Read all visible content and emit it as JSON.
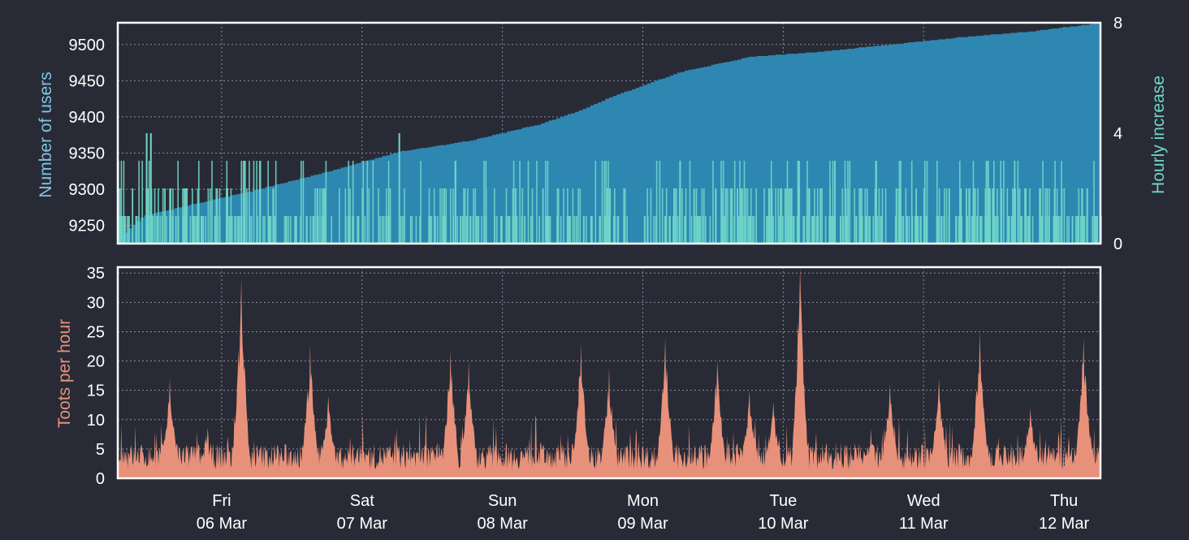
{
  "colors": {
    "background": "#282b36",
    "users": "#2e87b1",
    "users_label": "#7fc4e4",
    "increase": "#6fd6c9",
    "toots": "#e8917a"
  },
  "chart_data": [
    {
      "type": "area",
      "ylabel": "Number of users",
      "y2label": "Hourly increase",
      "ylim": [
        9225,
        9530
      ],
      "y2lim": [
        0,
        8
      ],
      "yticks": [
        9250,
        9300,
        9350,
        9400,
        9450,
        9500
      ],
      "y2ticks": [
        0,
        4,
        8
      ],
      "xlim": [
        0,
        7.0
      ],
      "series": [
        {
          "role": "users",
          "x": [
            0,
            0.17,
            0.5,
            1.0,
            1.5,
            2.0,
            2.5,
            3.0,
            3.3,
            3.5,
            4.0,
            4.5,
            5.0,
            5.5,
            6.0,
            6.5,
            7.0
          ],
          "values": [
            9230,
            9263,
            9278,
            9300,
            9325,
            9352,
            9367,
            9390,
            9410,
            9427,
            9462,
            9483,
            9490,
            9500,
            9510,
            9518,
            9530
          ]
        },
        {
          "role": "hourly-increase",
          "peaks": [
            [
              0.2,
              4
            ],
            [
              0.23,
              4
            ],
            [
              0.37,
              2
            ],
            [
              0.9,
              3
            ],
            [
              2.0,
              4
            ],
            [
              2.4,
              3
            ],
            [
              3.5,
              2
            ],
            [
              4.0,
              3
            ],
            [
              4.1,
              2
            ],
            [
              5.0,
              2
            ],
            [
              6.0,
              2
            ],
            [
              6.9,
              2
            ]
          ]
        }
      ]
    },
    {
      "type": "area",
      "ylabel": "Toots per hour",
      "ylim": [
        0,
        36
      ],
      "yticks": [
        0,
        5,
        10,
        15,
        20,
        25,
        30,
        35
      ],
      "xlim": [
        0,
        7.0
      ],
      "series": [
        {
          "role": "toots",
          "peaks": [
            [
              0.37,
              17
            ],
            [
              0.88,
              34
            ],
            [
              1.37,
              23
            ],
            [
              1.5,
              14
            ],
            [
              2.37,
              22
            ],
            [
              2.5,
              20
            ],
            [
              3.3,
              23
            ],
            [
              3.5,
              19
            ],
            [
              3.9,
              24
            ],
            [
              4.27,
              20
            ],
            [
              4.5,
              15
            ],
            [
              4.67,
              13
            ],
            [
              4.86,
              36
            ],
            [
              5.5,
              16
            ],
            [
              5.85,
              17
            ],
            [
              6.14,
              25
            ],
            [
              6.5,
              12
            ],
            [
              6.88,
              24
            ]
          ]
        }
      ]
    }
  ],
  "x_axis": {
    "ticks": [
      {
        "x": 0.74,
        "day": "Fri",
        "date": "06 Mar"
      },
      {
        "x": 1.74,
        "day": "Sat",
        "date": "07 Mar"
      },
      {
        "x": 2.74,
        "day": "Sun",
        "date": "08 Mar"
      },
      {
        "x": 3.74,
        "day": "Mon",
        "date": "09 Mar"
      },
      {
        "x": 4.74,
        "day": "Tue",
        "date": "10 Mar"
      },
      {
        "x": 5.74,
        "day": "Wed",
        "date": "11 Mar"
      },
      {
        "x": 6.74,
        "day": "Thu",
        "date": "12 Mar"
      }
    ]
  }
}
